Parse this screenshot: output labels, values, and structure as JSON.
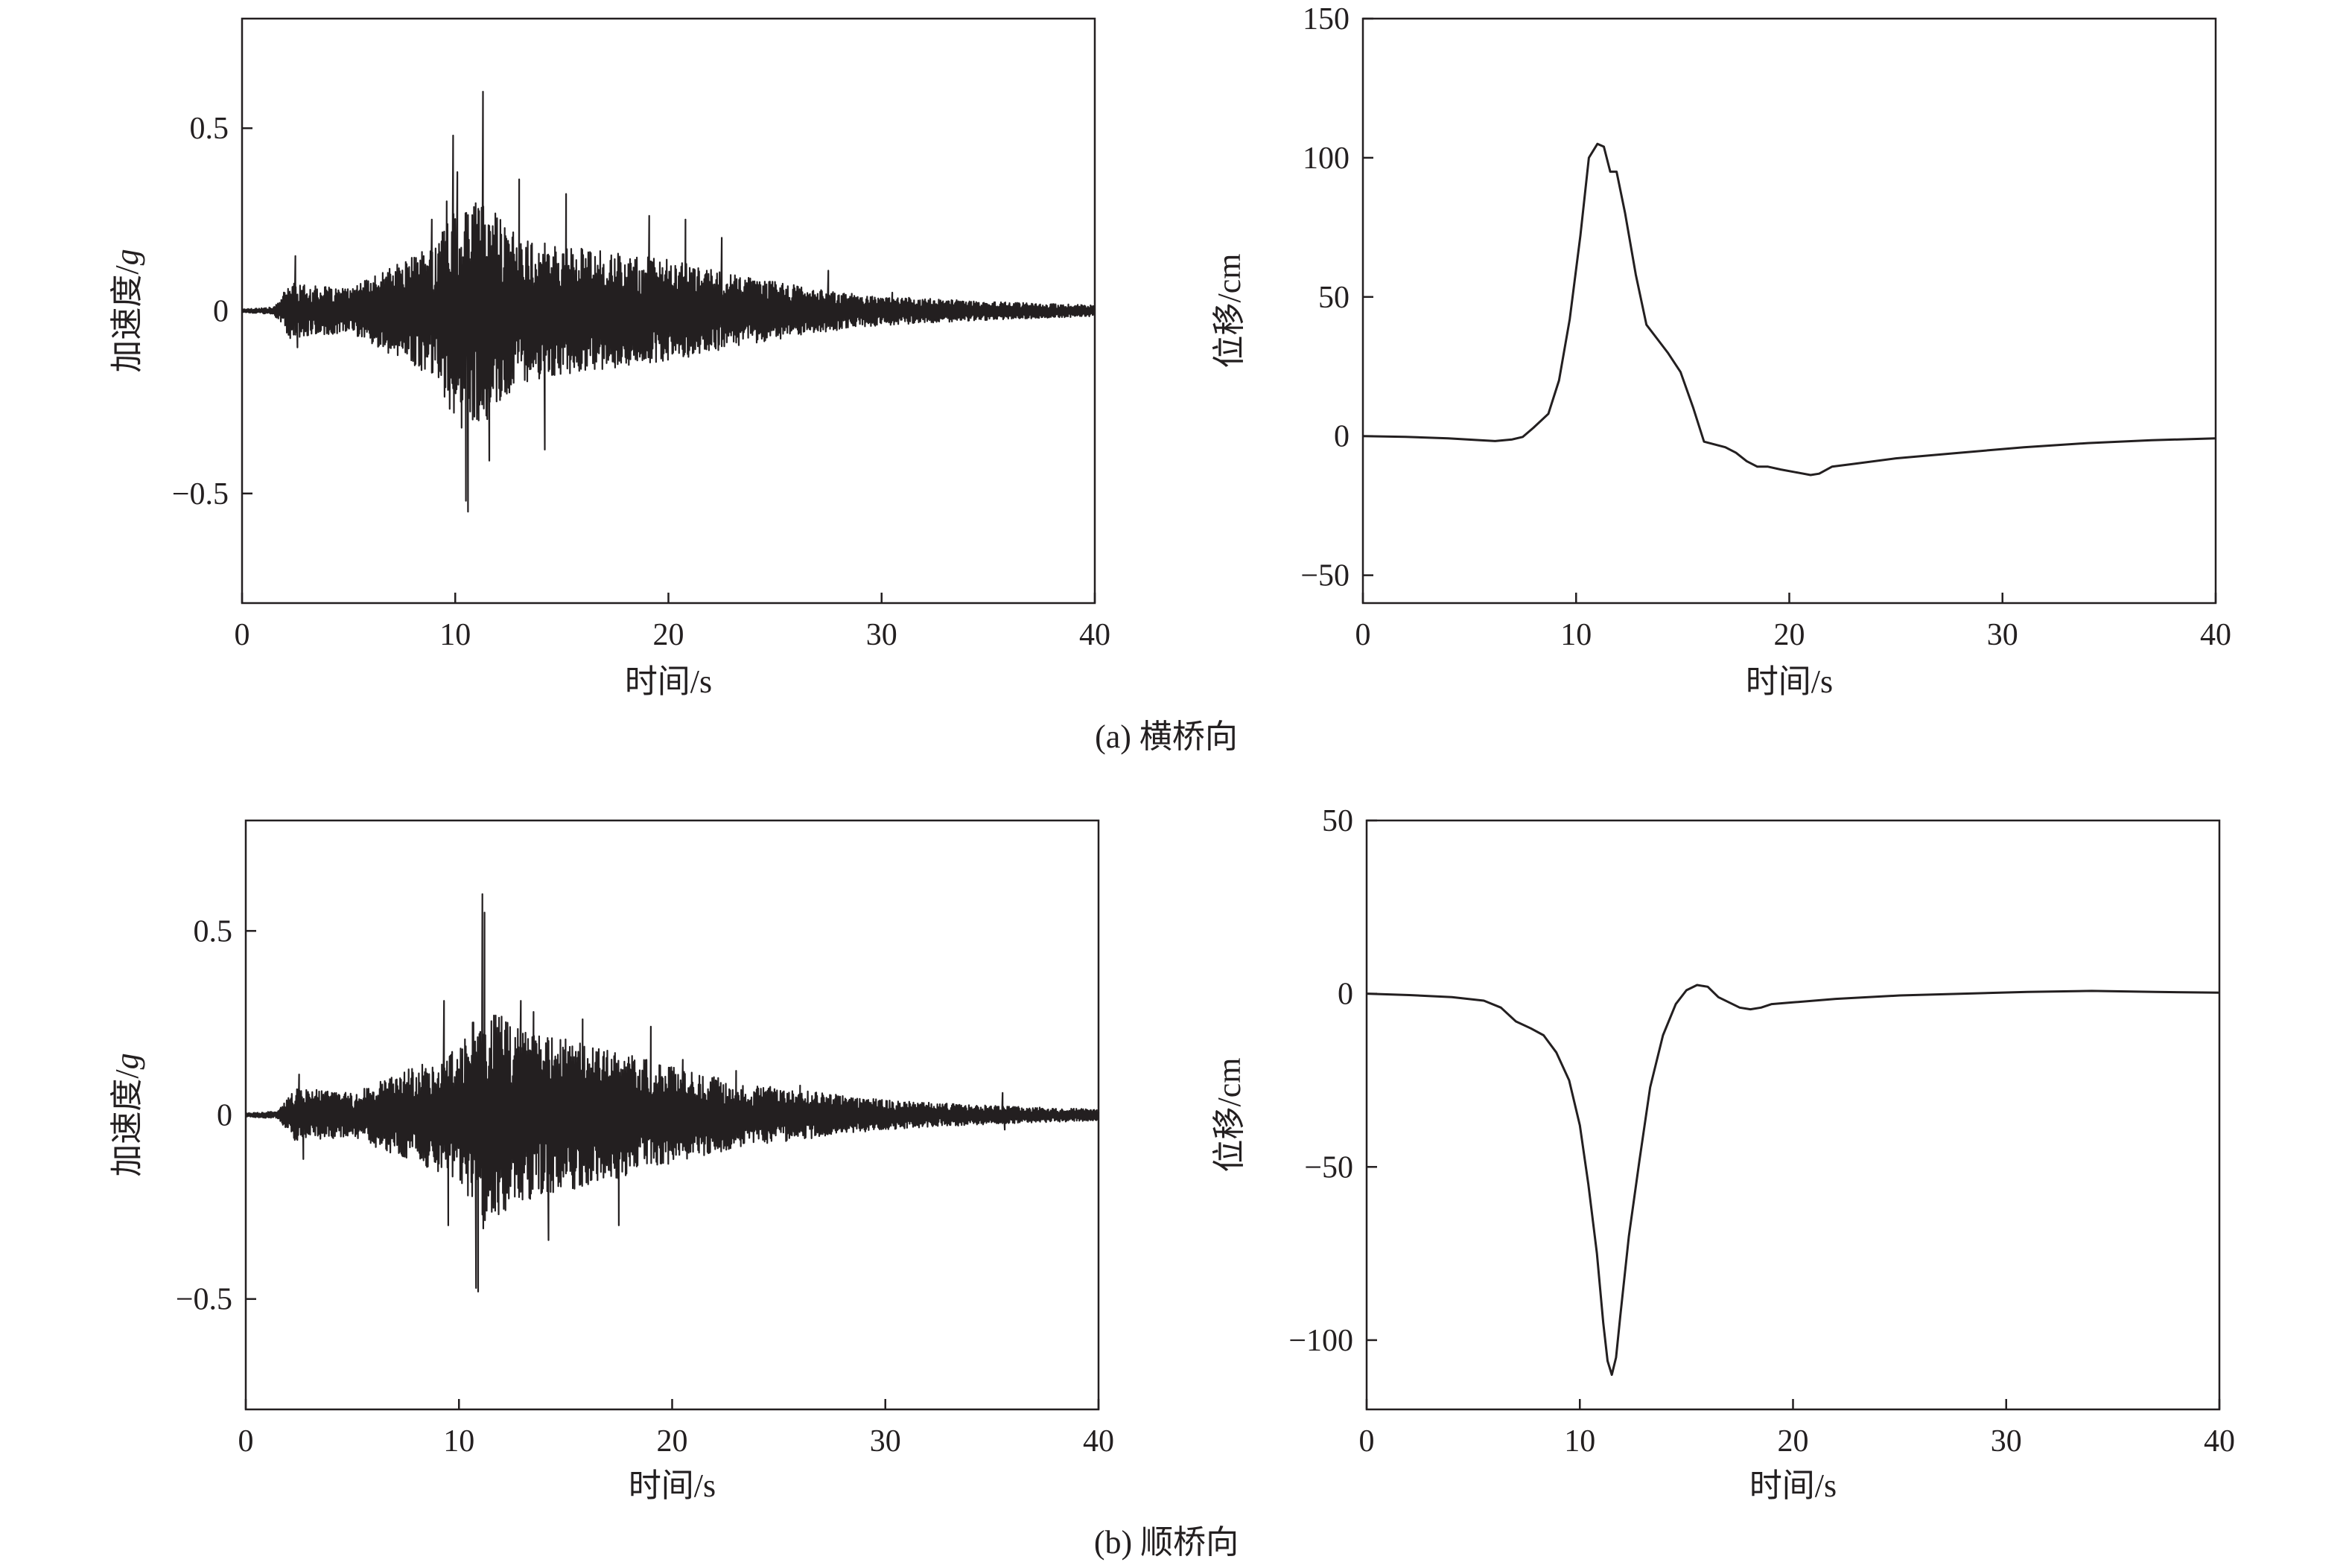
{
  "captions": {
    "a": "(a) 横桥向",
    "b": "(b) 顺桥向"
  },
  "chart_data": [
    {
      "id": "a-accel",
      "type": "line",
      "xlabel": "时间/s",
      "ylabel": "加速度/",
      "ylabel_italic": "g",
      "xlim": [
        0,
        40
      ],
      "ylim": [
        -0.8,
        0.8
      ],
      "xticks": [
        0,
        10,
        20,
        30,
        40
      ],
      "yticks": [
        -0.5,
        0,
        0.5
      ],
      "ytick_labels": [
        "−0.5",
        "0",
        "0.5"
      ],
      "series_kind": "ground-motion accelerogram (dense oscillation)",
      "envelope": [
        [
          0,
          0.005
        ],
        [
          1.5,
          0.01
        ],
        [
          2.3,
          0.08
        ],
        [
          3,
          0.07
        ],
        [
          5,
          0.06
        ],
        [
          7,
          0.12
        ],
        [
          9,
          0.18
        ],
        [
          10,
          0.3
        ],
        [
          11.5,
          0.3
        ],
        [
          13,
          0.2
        ],
        [
          16,
          0.17
        ],
        [
          20,
          0.14
        ],
        [
          23,
          0.1
        ],
        [
          27,
          0.06
        ],
        [
          30,
          0.04
        ],
        [
          35,
          0.025
        ],
        [
          40,
          0.015
        ]
      ],
      "peaks": [
        [
          2.5,
          0.15
        ],
        [
          2.6,
          -0.1
        ],
        [
          8.9,
          0.25
        ],
        [
          9.6,
          0.3
        ],
        [
          9.9,
          0.48
        ],
        [
          10.1,
          0.38
        ],
        [
          10.3,
          -0.32
        ],
        [
          10.5,
          -0.52
        ],
        [
          10.6,
          -0.55
        ],
        [
          11.1,
          -0.3
        ],
        [
          11.3,
          0.6
        ],
        [
          11.6,
          -0.41
        ],
        [
          13.0,
          0.36
        ],
        [
          14.2,
          -0.38
        ],
        [
          15.2,
          0.32
        ],
        [
          19.1,
          0.26
        ],
        [
          20.8,
          0.25
        ],
        [
          22.5,
          0.2
        ],
        [
          27.5,
          0.11
        ],
        [
          30.5,
          0.05
        ]
      ],
      "tail": [
        [
          36.0,
          0.03
        ],
        [
          38.5,
          0.02
        ]
      ]
    },
    {
      "id": "a-disp",
      "type": "line",
      "xlabel": "时间/s",
      "ylabel": "位移/cm",
      "xlim": [
        0,
        40
      ],
      "ylim": [
        -60,
        150
      ],
      "xticks": [
        0,
        10,
        20,
        30,
        40
      ],
      "yticks": [
        -50,
        0,
        50,
        100,
        150
      ],
      "ytick_labels": [
        "−50",
        "0",
        "50",
        "100",
        "150"
      ],
      "x": [
        0,
        2,
        4,
        5.5,
        6.2,
        7.0,
        7.5,
        8.0,
        8.7,
        9.2,
        9.7,
        10.2,
        10.6,
        11.0,
        11.3,
        11.6,
        11.9,
        12.3,
        12.8,
        13.3,
        13.8,
        14.3,
        14.9,
        15.5,
        16.0,
        16.5,
        17.0,
        17.5,
        18.0,
        18.5,
        19.0,
        19.6,
        20.3,
        21.0,
        21.4,
        22.0,
        23.0,
        25.0,
        28.0,
        31.0,
        34.0,
        37.0,
        40.0
      ],
      "y": [
        0,
        -0.3,
        -0.8,
        -1.5,
        -1.8,
        -1.2,
        -0.3,
        3,
        8,
        20,
        42,
        72,
        100,
        105,
        104,
        95,
        95,
        80,
        58,
        40,
        35,
        30,
        23,
        10,
        -2,
        -3,
        -4,
        -6,
        -9,
        -11,
        -11,
        -12,
        -13,
        -14,
        -13.5,
        -11,
        -10,
        -8,
        -6,
        -4,
        -2.5,
        -1.5,
        -0.8
      ]
    },
    {
      "id": "b-accel",
      "type": "line",
      "xlabel": "时间/s",
      "ylabel": "加速度/",
      "ylabel_italic": "g",
      "xlim": [
        0,
        40
      ],
      "ylim": [
        -0.8,
        0.8
      ],
      "xticks": [
        0,
        10,
        20,
        30,
        40
      ],
      "yticks": [
        -0.5,
        0,
        0.5
      ],
      "ytick_labels": [
        "−0.5",
        "0",
        "0.5"
      ],
      "series_kind": "ground-motion accelerogram (dense oscillation)",
      "envelope": [
        [
          0,
          0.005
        ],
        [
          1.5,
          0.01
        ],
        [
          2.3,
          0.07
        ],
        [
          3,
          0.07
        ],
        [
          5,
          0.06
        ],
        [
          7,
          0.11
        ],
        [
          9,
          0.16
        ],
        [
          10,
          0.18
        ],
        [
          11.2,
          0.32
        ],
        [
          12.5,
          0.24
        ],
        [
          14,
          0.22
        ],
        [
          17,
          0.18
        ],
        [
          20,
          0.13
        ],
        [
          23,
          0.09
        ],
        [
          27,
          0.06
        ],
        [
          30,
          0.04
        ],
        [
          35,
          0.025
        ],
        [
          40,
          0.015
        ]
      ],
      "peaks": [
        [
          2.5,
          0.11
        ],
        [
          2.7,
          -0.12
        ],
        [
          9.3,
          0.31
        ],
        [
          9.5,
          -0.3
        ],
        [
          10.9,
          -0.48
        ],
        [
          10.8,
          -0.47
        ],
        [
          11.1,
          0.6
        ],
        [
          11.2,
          0.55
        ],
        [
          12.9,
          0.31
        ],
        [
          13.5,
          0.28
        ],
        [
          14.2,
          -0.34
        ],
        [
          15.8,
          0.26
        ],
        [
          17.5,
          -0.3
        ],
        [
          19.0,
          0.24
        ],
        [
          20.5,
          0.15
        ],
        [
          23.0,
          0.12
        ],
        [
          26.0,
          0.08
        ],
        [
          35.5,
          0.06
        ],
        [
          35.6,
          -0.04
        ]
      ],
      "tail": [
        [
          36.0,
          0.03
        ],
        [
          38.5,
          0.02
        ]
      ]
    },
    {
      "id": "b-disp",
      "type": "line",
      "xlabel": "时间/s",
      "ylabel": "位移/cm",
      "xlim": [
        0,
        40
      ],
      "ylim": [
        -120,
        50
      ],
      "xticks": [
        0,
        10,
        20,
        30,
        40
      ],
      "yticks": [
        -100,
        -50,
        0,
        50
      ],
      "ytick_labels": [
        "−100",
        "−50",
        "0",
        "50"
      ],
      "x": [
        0,
        2,
        4,
        5.5,
        6.3,
        7.0,
        7.7,
        8.3,
        8.9,
        9.5,
        10.0,
        10.4,
        10.8,
        11.1,
        11.3,
        11.5,
        11.7,
        11.9,
        12.3,
        12.8,
        13.3,
        13.9,
        14.5,
        15.0,
        15.5,
        16.0,
        16.5,
        17.0,
        17.5,
        18.0,
        18.5,
        19.0,
        20.0,
        22.0,
        25.0,
        28.0,
        31.0,
        34.0,
        37.0,
        40.0
      ],
      "y": [
        0,
        -0.4,
        -1,
        -2,
        -4,
        -8,
        -10,
        -12,
        -17,
        -25,
        -38,
        -55,
        -75,
        -95,
        -106,
        -110,
        -105,
        -93,
        -70,
        -48,
        -27,
        -12,
        -3,
        1,
        2.5,
        2,
        -1,
        -2.5,
        -4,
        -4.5,
        -4,
        -3,
        -2.5,
        -1.5,
        -0.5,
        0,
        0.5,
        0.8,
        0.5,
        0.3
      ]
    }
  ]
}
